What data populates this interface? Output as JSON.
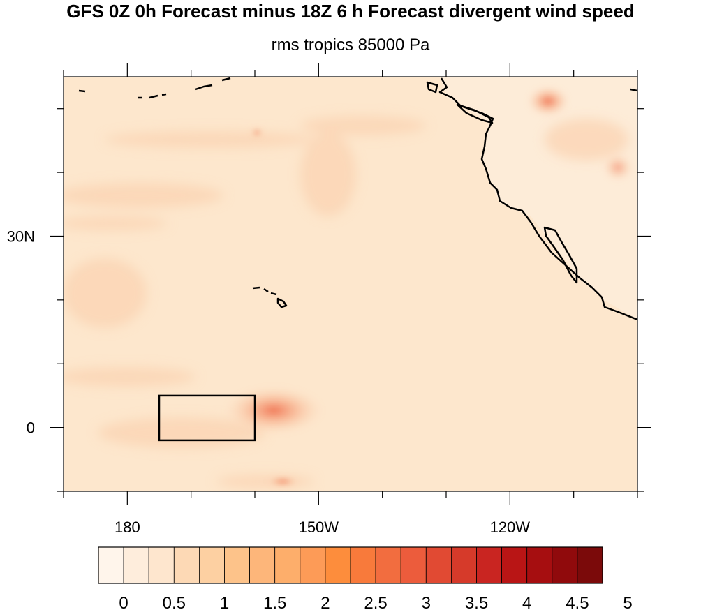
{
  "title": "GFS 0Z 0h Forecast minus 18Z 6 h Forecast divergent wind speed",
  "subtitle": "rms tropics 85000 Pa",
  "map": {
    "lon_labels": [
      "180",
      "150W",
      "120W"
    ],
    "lat_labels": [
      "30N",
      "0"
    ],
    "lon_range": [
      170,
      260
    ],
    "lat_range": [
      -10,
      55
    ],
    "region_box": {
      "lon": [
        185,
        200
      ],
      "lat": [
        -2,
        5
      ]
    },
    "field_colors": {
      "background": "#fde7cd",
      "land": "#fdecd8",
      "feature": "#fbd2b0",
      "hotspot": "#ee6a48"
    }
  },
  "colorbar": {
    "labels": [
      "0",
      "0.5",
      "1",
      "1.5",
      "2",
      "2.5",
      "3",
      "3.5",
      "4",
      "4.5",
      "5"
    ],
    "colors": [
      "#fff5eb",
      "#feeddc",
      "#fee6ce",
      "#fdd9b5",
      "#fdd0a2",
      "#fdc38a",
      "#fdb67a",
      "#fdae6b",
      "#fd9b57",
      "#fd8d3c",
      "#f87a3b",
      "#f26d3f",
      "#ec5c3c",
      "#e14a33",
      "#d63a2a",
      "#c92521",
      "#b91515",
      "#a60e10",
      "#900a0c",
      "#7b0a0a"
    ]
  }
}
